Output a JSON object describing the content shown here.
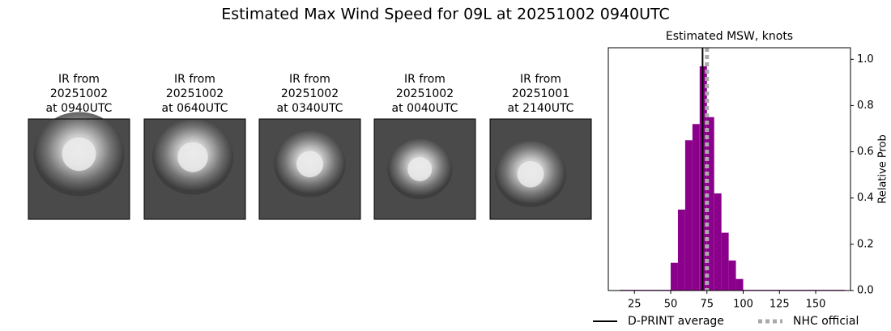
{
  "title": "Estimated Max Wind Speed for 09L at 20251002 0940UTC",
  "panels": [
    {
      "lines": [
        "IR from",
        "20251002",
        "at 0940UTC"
      ]
    },
    {
      "lines": [
        "IR from",
        "20251002",
        "at 0640UTC"
      ]
    },
    {
      "lines": [
        "IR from",
        "20251002",
        "at 0340UTC"
      ]
    },
    {
      "lines": [
        "IR from",
        "20251002",
        "at 0040UTC"
      ]
    },
    {
      "lines": [
        "IR from",
        "20251001",
        "at 2140UTC"
      ]
    }
  ],
  "chart_data": {
    "type": "histogram",
    "title": "Estimated MSW, knots",
    "y_label": "Relative Prob",
    "bins": [
      15,
      20,
      25,
      30,
      35,
      40,
      45,
      50,
      55,
      60,
      65,
      70,
      75,
      80,
      85,
      90,
      95,
      100,
      105,
      110,
      115,
      120,
      125,
      130,
      135,
      140,
      145,
      150,
      155,
      160,
      165,
      170
    ],
    "values": [
      0.003,
      0.003,
      0.003,
      0.003,
      0.003,
      0.003,
      0.003,
      0.12,
      0.35,
      0.65,
      0.72,
      0.97,
      0.75,
      0.42,
      0.25,
      0.13,
      0.05,
      0.003,
      0.003,
      0.003,
      0.003,
      0.003,
      0.003,
      0.003,
      0.003,
      0.003,
      0.003,
      0.003,
      0.003,
      0.003,
      0.003
    ],
    "color": "#8b008b",
    "xlim": [
      7,
      174
    ],
    "ylim": [
      0,
      1.05
    ],
    "xticks": [
      25,
      50,
      75,
      100,
      125,
      150
    ],
    "yticks": [
      {
        "value": 0,
        "label": "0.0"
      },
      {
        "value": 0.2,
        "label": "0.2"
      },
      {
        "value": 0.4,
        "label": "0.4"
      },
      {
        "value": 0.6,
        "label": "0.6"
      },
      {
        "value": 0.8,
        "label": "0.8"
      },
      {
        "value": 1,
        "label": "1.0"
      }
    ],
    "reference_lines": [
      {
        "name": "D-PRINT average",
        "value": 72,
        "color": "#000000",
        "style": "solid"
      },
      {
        "name": "NHC official",
        "value": 75,
        "color": "#aaaaaa",
        "style": "dotted"
      }
    ]
  }
}
